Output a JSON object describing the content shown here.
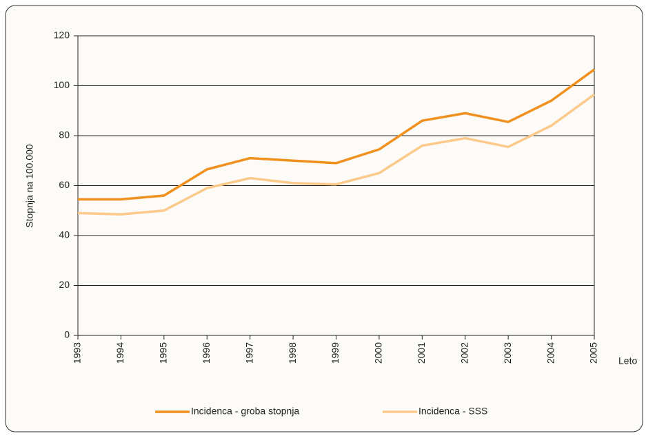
{
  "chart_data": {
    "type": "line",
    "y_label": "Stopnja na 100.000",
    "x_label": "Leto",
    "x": [
      1993,
      1994,
      1995,
      1996,
      1997,
      1998,
      1999,
      2000,
      2001,
      2002,
      2003,
      2004,
      2005
    ],
    "xlim": [
      1993,
      2005
    ],
    "xticks": [
      1993,
      1994,
      1995,
      1996,
      1997,
      1998,
      1999,
      2000,
      2001,
      2002,
      2003,
      2004,
      2005
    ],
    "ylim": [
      0,
      120
    ],
    "yticks": [
      0,
      20,
      40,
      60,
      80,
      100,
      120
    ],
    "grid": true,
    "legend": "bottom",
    "series": [
      {
        "name": "Incidenca - groba stopnja",
        "color": "#f0901e",
        "values": [
          54.5,
          54.5,
          56,
          66.5,
          71,
          70,
          69,
          74.5,
          86,
          89,
          85.5,
          94,
          106.5
        ]
      },
      {
        "name": "Incidenca - SSS",
        "color": "#fbc98a",
        "values": [
          49,
          48.5,
          50,
          59,
          63,
          61,
          60.5,
          65,
          76,
          79,
          75.5,
          84,
          96.5
        ]
      }
    ]
  }
}
